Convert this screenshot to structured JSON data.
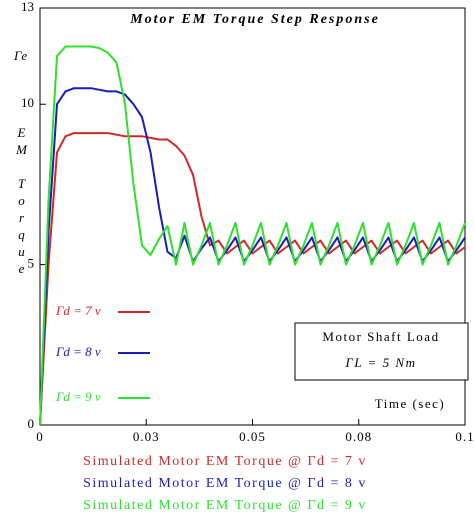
{
  "chart_data": {
    "type": "line",
    "title": "Motor EM Torque Step Response",
    "y_label_symbol": "Γe",
    "y_label": "EM Torque",
    "x_label": "Time (sec)",
    "xlim": [
      0,
      0.1
    ],
    "ylim": [
      0,
      13
    ],
    "xticks": [
      0,
      {
        "value": 0.025,
        "label": "0.03"
      },
      0.05,
      {
        "value": 0.075,
        "label": "0.08"
      },
      0.1
    ],
    "yticks": [
      0,
      5,
      10,
      13
    ],
    "legend": "lower left",
    "x": [
      0,
      0.002,
      0.004,
      0.006,
      0.008,
      0.01,
      0.012,
      0.014,
      0.016,
      0.018,
      0.02,
      0.022,
      0.024,
      0.026,
      0.028,
      0.03,
      0.032,
      0.034,
      0.036,
      0.038,
      0.04,
      0.042,
      0.044,
      0.046,
      0.048,
      0.05,
      0.052,
      0.054,
      0.056,
      0.058,
      0.06,
      0.062,
      0.064,
      0.066,
      0.068,
      0.07,
      0.072,
      0.074,
      0.076,
      0.078,
      0.08,
      0.082,
      0.084,
      0.086,
      0.088,
      0.09,
      0.092,
      0.094,
      0.096,
      0.098,
      0.1
    ],
    "series": [
      {
        "name": "Γd = 7 v",
        "color": "#d02828",
        "values": [
          0,
          5,
          8.5,
          9,
          9.1,
          9.1,
          9.1,
          9.1,
          9.1,
          9.05,
          9,
          9,
          9,
          8.95,
          8.9,
          8.9,
          8.7,
          8.4,
          7.8,
          6.5,
          5.6,
          5.75,
          5.35,
          5.55,
          5.75,
          5.35,
          5.55,
          5.75,
          5.35,
          5.55,
          5.75,
          5.35,
          5.55,
          5.75,
          5.35,
          5.55,
          5.75,
          5.35,
          5.55,
          5.75,
          5.35,
          5.55,
          5.75,
          5.35,
          5.55,
          5.75,
          5.35,
          5.55,
          5.75,
          5.35,
          5.55
        ]
      },
      {
        "name": "Γd = 8 v",
        "color": "#1c1cb8",
        "values": [
          0,
          6,
          10,
          10.4,
          10.5,
          10.5,
          10.5,
          10.45,
          10.4,
          10.4,
          10.3,
          10,
          9.6,
          8.5,
          6.8,
          5.4,
          5.2,
          5.9,
          5.1,
          5.5,
          5.85,
          5.1,
          5.45,
          5.85,
          5.1,
          5.45,
          5.85,
          5.1,
          5.45,
          5.85,
          5.1,
          5.45,
          5.85,
          5.1,
          5.45,
          5.85,
          5.1,
          5.45,
          5.85,
          5.1,
          5.45,
          5.85,
          5.1,
          5.45,
          5.85,
          5.1,
          5.45,
          5.85,
          5.1,
          5.45,
          5.85
        ]
      },
      {
        "name": "Γd = 9 v",
        "color": "#2ee02e",
        "values": [
          0,
          7,
          11.5,
          11.8,
          11.8,
          11.8,
          11.8,
          11.75,
          11.6,
          11.3,
          10,
          7.5,
          5.6,
          5.3,
          5.8,
          6.2,
          5,
          6.3,
          5,
          5.6,
          6.3,
          5,
          5.6,
          6.3,
          5,
          5.6,
          6.3,
          5,
          5.6,
          6.3,
          5,
          5.6,
          6.3,
          5,
          5.6,
          6.3,
          5,
          5.6,
          6.3,
          5,
          5.6,
          6.3,
          5,
          5.6,
          6.3,
          5,
          5.6,
          6.3,
          5,
          5.6,
          6.3
        ]
      }
    ],
    "annotation": [
      "Motor Shaft Load",
      "ΓL = 5 Nm"
    ],
    "captions": [
      "Simulated Motor EM Torque @ Γd = 7 v",
      "Simulated Motor EM Torque @ Γd = 8 v",
      "Simulated Motor EM Torque @ Γd = 9 v"
    ]
  }
}
